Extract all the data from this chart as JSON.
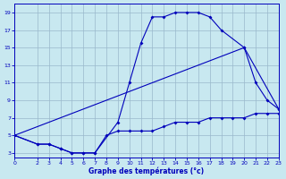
{
  "line1_x": [
    0,
    2,
    3,
    4,
    5,
    6,
    7,
    9,
    10,
    11,
    12,
    13,
    14,
    15,
    16,
    17,
    18,
    20,
    21,
    22,
    23
  ],
  "line1_y": [
    5,
    4,
    4,
    3.5,
    3,
    3,
    3,
    6.5,
    11,
    15.5,
    18.5,
    18.5,
    19,
    19,
    19,
    18.5,
    17,
    15,
    11,
    9,
    8
  ],
  "line2_x": [
    0,
    20,
    23
  ],
  "line2_y": [
    5,
    15,
    8
  ],
  "line3_x": [
    0,
    2,
    3,
    4,
    5,
    6,
    7,
    8,
    9,
    10,
    11,
    12,
    13,
    14,
    15,
    16,
    17,
    18,
    19,
    20,
    21,
    22,
    23
  ],
  "line3_y": [
    5,
    4,
    4,
    3.5,
    3,
    3,
    3,
    5,
    5.5,
    5.5,
    5.5,
    5.5,
    6,
    6.5,
    6.5,
    6.5,
    7,
    7,
    7,
    7,
    7.5,
    7.5,
    7.5
  ],
  "xlim": [
    0,
    23
  ],
  "ylim": [
    2.5,
    20
  ],
  "xticks": [
    0,
    2,
    3,
    4,
    5,
    6,
    7,
    8,
    9,
    10,
    11,
    12,
    13,
    14,
    15,
    16,
    17,
    18,
    19,
    20,
    21,
    22,
    23
  ],
  "yticks": [
    3,
    5,
    7,
    9,
    11,
    13,
    15,
    17,
    19
  ],
  "xlabel": "Graphe des températures (°c)",
  "line_color": "#0000bb",
  "bg_color": "#c8e8f0",
  "grid_color": "#9ab8cc"
}
